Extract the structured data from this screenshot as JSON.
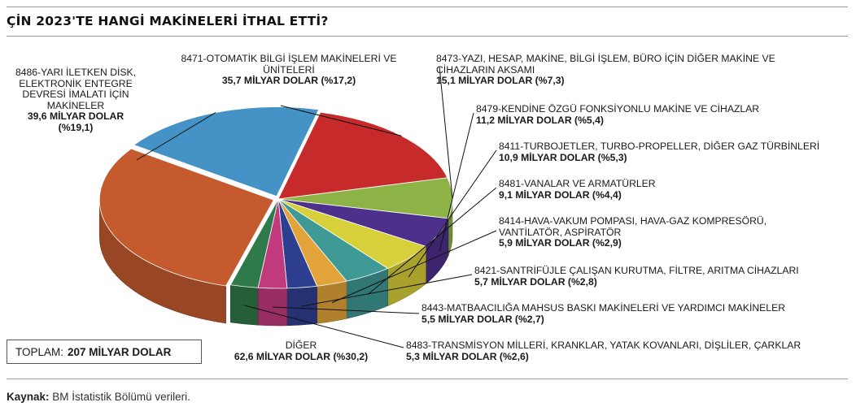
{
  "title": "ÇİN 2023'TE HANGİ MAKİNELERİ İTHAL ETTİ?",
  "total": {
    "label": "TOPLAM:",
    "value": "207 MİLYAR DOLAR"
  },
  "source": {
    "label": "Kaynak:",
    "text": "BM İstatistik Bölümü verileri."
  },
  "chart_data": {
    "type": "pie",
    "unit": "MİLYAR DOLAR",
    "slices": [
      {
        "name": "8471-OTOMATİK BİLGİ İŞLEM MAKİNELERİ VE ÜNİTELERİ",
        "value": 35.7,
        "value_label": "35,7 MİLYAR DOLAR (%17,2)",
        "percent": 17.2,
        "color": "#c62a2a"
      },
      {
        "name": "8473-YAZI, HESAP, MAKİNE, BİLGİ İŞLEM, BÜRO İÇİN DİĞER MAKİNE VE CİHAZLARIN AKSAMI",
        "value": 15.1,
        "value_label": "15,1 MİLYAR DOLAR (%7,3)",
        "percent": 7.3,
        "color": "#8db346"
      },
      {
        "name": "8479-KENDİNE ÖZGÜ FONKSİYONLU MAKİNE VE CİHAZLAR",
        "value": 11.2,
        "value_label": "11,2 MİLYAR DOLAR (%5,4)",
        "percent": 5.4,
        "color": "#4d2f8c"
      },
      {
        "name": "8411-TURBOJETLER, TURBO-PROPELLER, DİĞER GAZ TÜRBİNLERİ",
        "value": 10.9,
        "value_label": "10,9 MİLYAR DOLAR (%5,3)",
        "percent": 5.3,
        "color": "#d8d03a"
      },
      {
        "name": "8481-VANALAR VE ARMATÜRLER",
        "value": 9.1,
        "value_label": "9,1 MİLYAR DOLAR (%4,4)",
        "percent": 4.4,
        "color": "#3f9a96"
      },
      {
        "name": "8414-HAVA-VAKUM POMPASI, HAVA-GAZ KOMPRESÖRÜ, VANTİLATÖR, ASPİRATÖR",
        "value": 5.9,
        "value_label": "5,9 MİLYAR DOLAR (%2,9)",
        "percent": 2.9,
        "color": "#e2a43a"
      },
      {
        "name": "8421-SANTRİFÜJLE ÇALIŞAN KURUTMA, FİLTRE, ARITMA CİHAZLARI",
        "value": 5.7,
        "value_label": "5,7 MİLYAR DOLAR (%2,8)",
        "percent": 2.8,
        "color": "#2f3f8f"
      },
      {
        "name": "8443-MATBAACILIĞA MAHSUS BASKI MAKİNELERİ VE YARDIMCI MAKİNELER",
        "value": 5.5,
        "value_label": "5,5 MİLYAR DOLAR (%2,7)",
        "percent": 2.7,
        "color": "#c23a7e"
      },
      {
        "name": "8483-TRANSMİSYON MİLLERİ, KRANKLAR, YATAK KOVANLARI, DİŞLİLER, ÇARKLAR",
        "value": 5.3,
        "value_label": "5,3 MİLYAR DOLAR (%2,6)",
        "percent": 2.6,
        "color": "#2f7a4a"
      },
      {
        "name": "DİĞER",
        "value": 62.6,
        "value_label": "62,6 MİLYAR DOLAR (%30,2)",
        "percent": 30.2,
        "color": "#c45a2e"
      },
      {
        "name": "8486-YARI İLETKEN DİSK, ELEKTRONİK ENTEGRE DEVRESİ İMALATI İÇİN MAKİNELER",
        "value": 39.6,
        "value_label": "39,6 MİLYAR DOLAR (%19,1)",
        "percent": 19.1,
        "color": "#4592c6"
      }
    ]
  }
}
